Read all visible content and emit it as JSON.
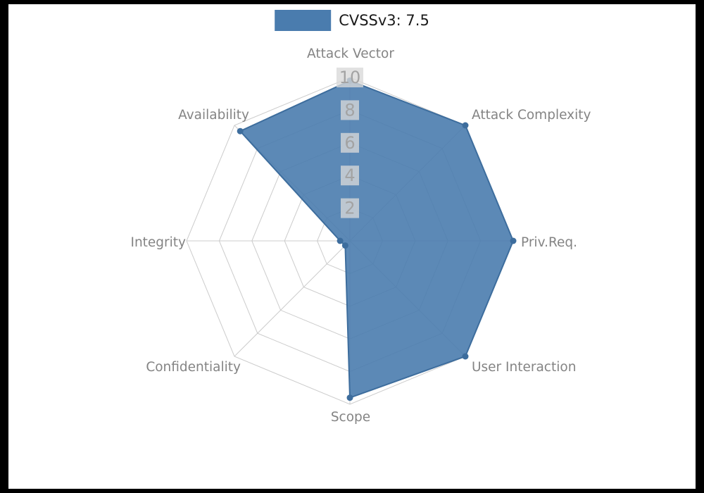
{
  "page": {
    "background": "#000000",
    "canvas_background": "#ffffff"
  },
  "chart_data": {
    "type": "radar",
    "title": "",
    "categories": [
      "Attack Vector",
      "Attack Complexity",
      "Priv.Req.",
      "User Interaction",
      "Scope",
      "Confidentiality",
      "Integrity",
      "Availability"
    ],
    "series": [
      {
        "name": "CVSSv3: 7.5",
        "values": [
          9.8,
          10,
          10,
          10,
          9.6,
          0.4,
          0.6,
          9.5
        ]
      }
    ],
    "radial_ticks": [
      2,
      4,
      6,
      8,
      10
    ],
    "rlim": [
      0,
      10
    ],
    "start_axis": "top",
    "direction": "clockwise",
    "grid": true,
    "legend_position": "top-center",
    "colors": {
      "fill": "#4a7cae",
      "fill_opacity": 0.9,
      "stroke": "#3d6d9d",
      "marker": "#3d6d9d",
      "grid_line": "#cccccc",
      "axis_label": "#848484",
      "tick_text": "#a3a3a3",
      "tick_box": "#d9d9d9",
      "legend_text": "#1a1a1a"
    }
  }
}
